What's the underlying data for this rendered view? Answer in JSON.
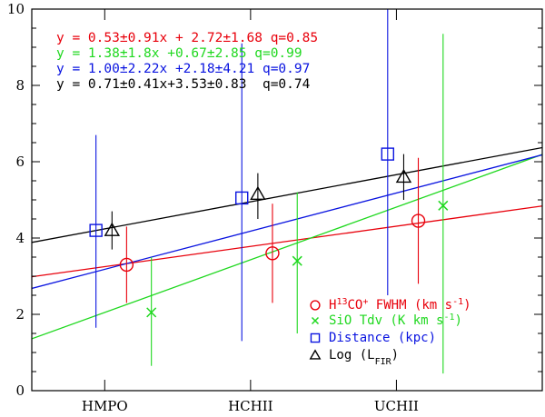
{
  "chart_data": {
    "type": "scatter",
    "title": "",
    "xlabel": "",
    "ylabel": "",
    "categories": [
      "HMPO",
      "HCHII",
      "UCHII"
    ],
    "xlim": [
      0.5,
      4.0
    ],
    "ylim": [
      0,
      10
    ],
    "y_ticks": [
      "0",
      "2",
      "4",
      "6",
      "8",
      "10"
    ],
    "grid": false,
    "legend_position": "bottom-right",
    "fit_equations": [
      {
        "text": "y = 0.53±0.91x + 2.72±1.68 q=0.85",
        "color": "#e8000b"
      },
      {
        "text": "y = 1.38±1.8x +0.67±2.85 q=0.99",
        "color": "#1fd81f"
      },
      {
        "text": "y = 1.00±2.22x +2.18±4.21 q=0.97",
        "color": "#0a14e0"
      },
      {
        "text": "y = 0.71±0.41x+3.53±0.83  q=0.74",
        "color": "#000000"
      }
    ],
    "series": [
      {
        "key": "h13co",
        "legend": {
          "main": "H",
          "sup1": "13",
          "mid": "CO",
          "sup2": "+",
          "rest": " FWHM (km s",
          "sup3": "-1",
          "end": ")"
        },
        "marker": "circle",
        "color": "#e8000b",
        "x": [
          1.15,
          2.15,
          3.15
        ],
        "values": [
          3.3,
          3.6,
          4.45
        ],
        "err_low": [
          2.3,
          2.3,
          2.8
        ],
        "err_high": [
          4.3,
          4.9,
          6.1
        ],
        "fit": {
          "slope": 0.53,
          "intercept": 2.72
        }
      },
      {
        "key": "sio",
        "legend": {
          "main": "SiO Tdv (K km s",
          "sup1": "-1",
          "end": ")"
        },
        "marker": "cross",
        "color": "#1fd81f",
        "x": [
          1.32,
          2.32,
          3.32
        ],
        "values": [
          2.05,
          3.4,
          4.85
        ],
        "err_low": [
          0.65,
          1.5,
          0.45
        ],
        "err_high": [
          3.5,
          5.2,
          9.35
        ],
        "fit": {
          "slope": 1.38,
          "intercept": 0.67
        }
      },
      {
        "key": "distance",
        "legend": {
          "main": "Distance (kpc)"
        },
        "marker": "square",
        "color": "#0a14e0",
        "x": [
          0.94,
          1.94,
          2.94
        ],
        "values": [
          4.2,
          5.05,
          6.2
        ],
        "err_low": [
          1.65,
          1.3,
          2.5
        ],
        "err_high": [
          6.7,
          9.1,
          10.0
        ],
        "fit": {
          "slope": 1.0,
          "intercept": 2.18
        }
      },
      {
        "key": "lfir",
        "legend": {
          "main": "Log (L",
          "sub": "FIR",
          "end": ")"
        },
        "marker": "triangle",
        "color": "#000000",
        "x": [
          1.05,
          2.05,
          3.05
        ],
        "values": [
          4.2,
          5.15,
          5.6
        ],
        "err_low": [
          3.7,
          4.5,
          5.0
        ],
        "err_high": [
          4.7,
          5.7,
          6.2
        ],
        "fit": {
          "slope": 0.71,
          "intercept": 3.53
        }
      }
    ]
  }
}
